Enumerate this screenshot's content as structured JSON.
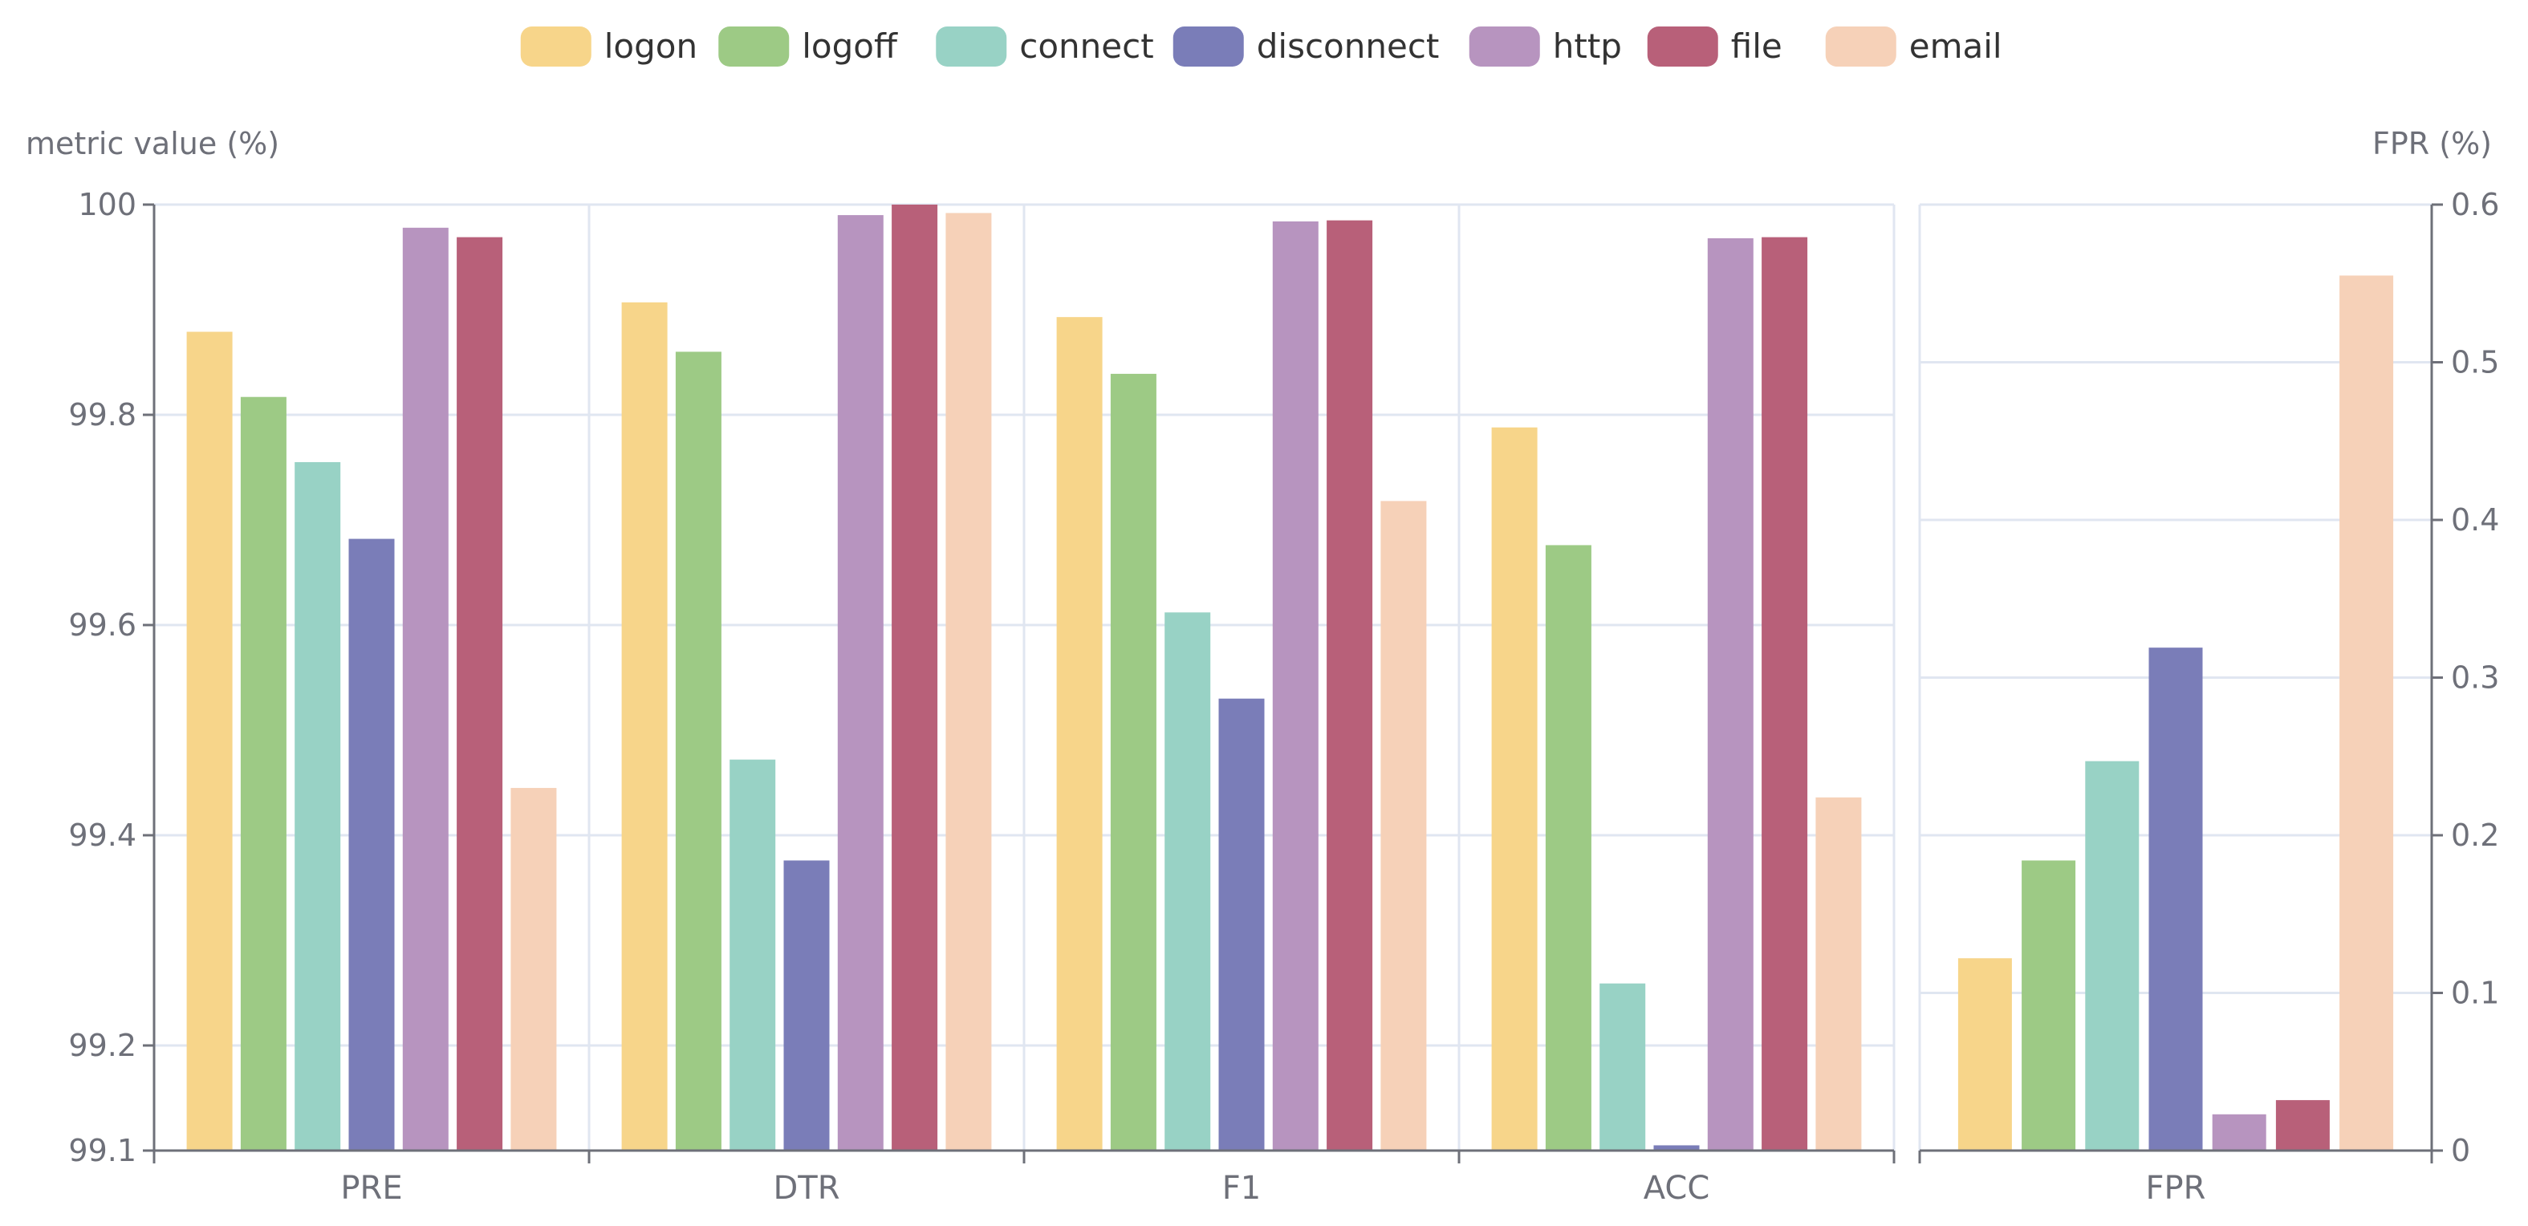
{
  "chart_data": [
    {
      "type": "bar",
      "categories": [
        "PRE",
        "DTR",
        "F1",
        "ACC"
      ],
      "ylabel": "metric value (%)",
      "ylim": [
        99.1,
        100
      ],
      "yticks": [
        "99.1",
        "99.2",
        "99.4",
        "99.6",
        "99.8",
        "100"
      ],
      "grid": true,
      "legend_position": "top-center",
      "series": [
        {
          "name": "logon",
          "color": "#f7d58a",
          "values": [
            99.879,
            99.907,
            99.893,
            99.788
          ]
        },
        {
          "name": "logoff",
          "color": "#9dca85",
          "values": [
            99.817,
            99.86,
            99.839,
            99.676
          ]
        },
        {
          "name": "connect",
          "color": "#98d2c5",
          "values": [
            99.755,
            99.472,
            99.612,
            99.259
          ]
        },
        {
          "name": "disconnect",
          "color": "#7a7db8",
          "values": [
            99.682,
            99.376,
            99.53,
            99.105
          ]
        },
        {
          "name": "http",
          "color": "#b794bf",
          "values": [
            99.978,
            99.99,
            99.984,
            99.968
          ]
        },
        {
          "name": "file",
          "color": "#b86079",
          "values": [
            99.969,
            100.0,
            99.985,
            99.969
          ]
        },
        {
          "name": "email",
          "color": "#f6d1b8",
          "values": [
            99.445,
            99.992,
            99.718,
            99.436
          ]
        }
      ]
    },
    {
      "type": "bar",
      "categories": [
        "FPR"
      ],
      "ylabel": "FPR (%)",
      "ylim": [
        0,
        0.6
      ],
      "yticks": [
        "0",
        "0.1",
        "0.2",
        "0.3",
        "0.4",
        "0.5",
        "0.6"
      ],
      "grid": true,
      "series": [
        {
          "name": "logon",
          "color": "#f7d58a",
          "values": [
            0.122
          ]
        },
        {
          "name": "logoff",
          "color": "#9dca85",
          "values": [
            0.184
          ]
        },
        {
          "name": "connect",
          "color": "#98d2c5",
          "values": [
            0.247
          ]
        },
        {
          "name": "disconnect",
          "color": "#7a7db8",
          "values": [
            0.319
          ]
        },
        {
          "name": "http",
          "color": "#b794bf",
          "values": [
            0.023
          ]
        },
        {
          "name": "file",
          "color": "#b86079",
          "values": [
            0.032
          ]
        },
        {
          "name": "email",
          "color": "#f6d1b8",
          "values": [
            0.555
          ]
        }
      ]
    }
  ]
}
